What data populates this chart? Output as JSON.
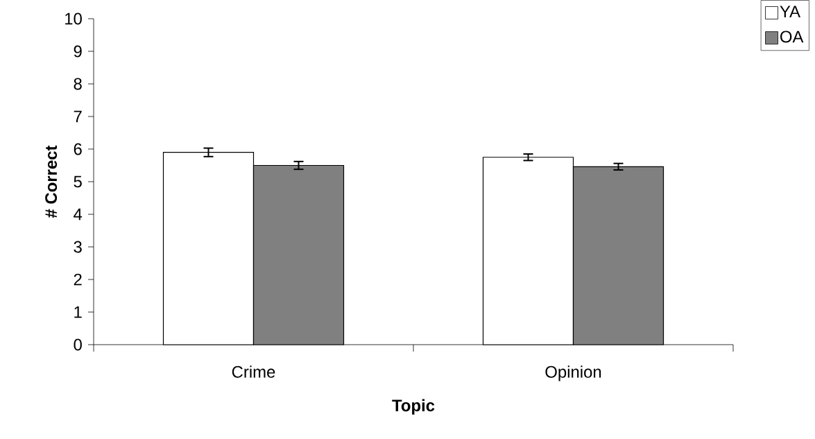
{
  "chart_data": {
    "type": "bar",
    "xlabel": "Topic",
    "ylabel": "# Correct",
    "categories": [
      "Crime",
      "Opinion"
    ],
    "ylim": [
      0,
      10
    ],
    "yticks": [
      0,
      1,
      2,
      3,
      4,
      5,
      6,
      7,
      8,
      9,
      10
    ],
    "legend": "top right",
    "grid": false,
    "series": [
      {
        "name": "YA",
        "color": "#ffffff",
        "values": [
          5.9,
          5.75
        ],
        "errors": [
          0.13,
          0.1
        ]
      },
      {
        "name": "OA",
        "color": "#808080",
        "values": [
          5.5,
          5.46
        ],
        "errors": [
          0.12,
          0.1
        ]
      }
    ]
  }
}
